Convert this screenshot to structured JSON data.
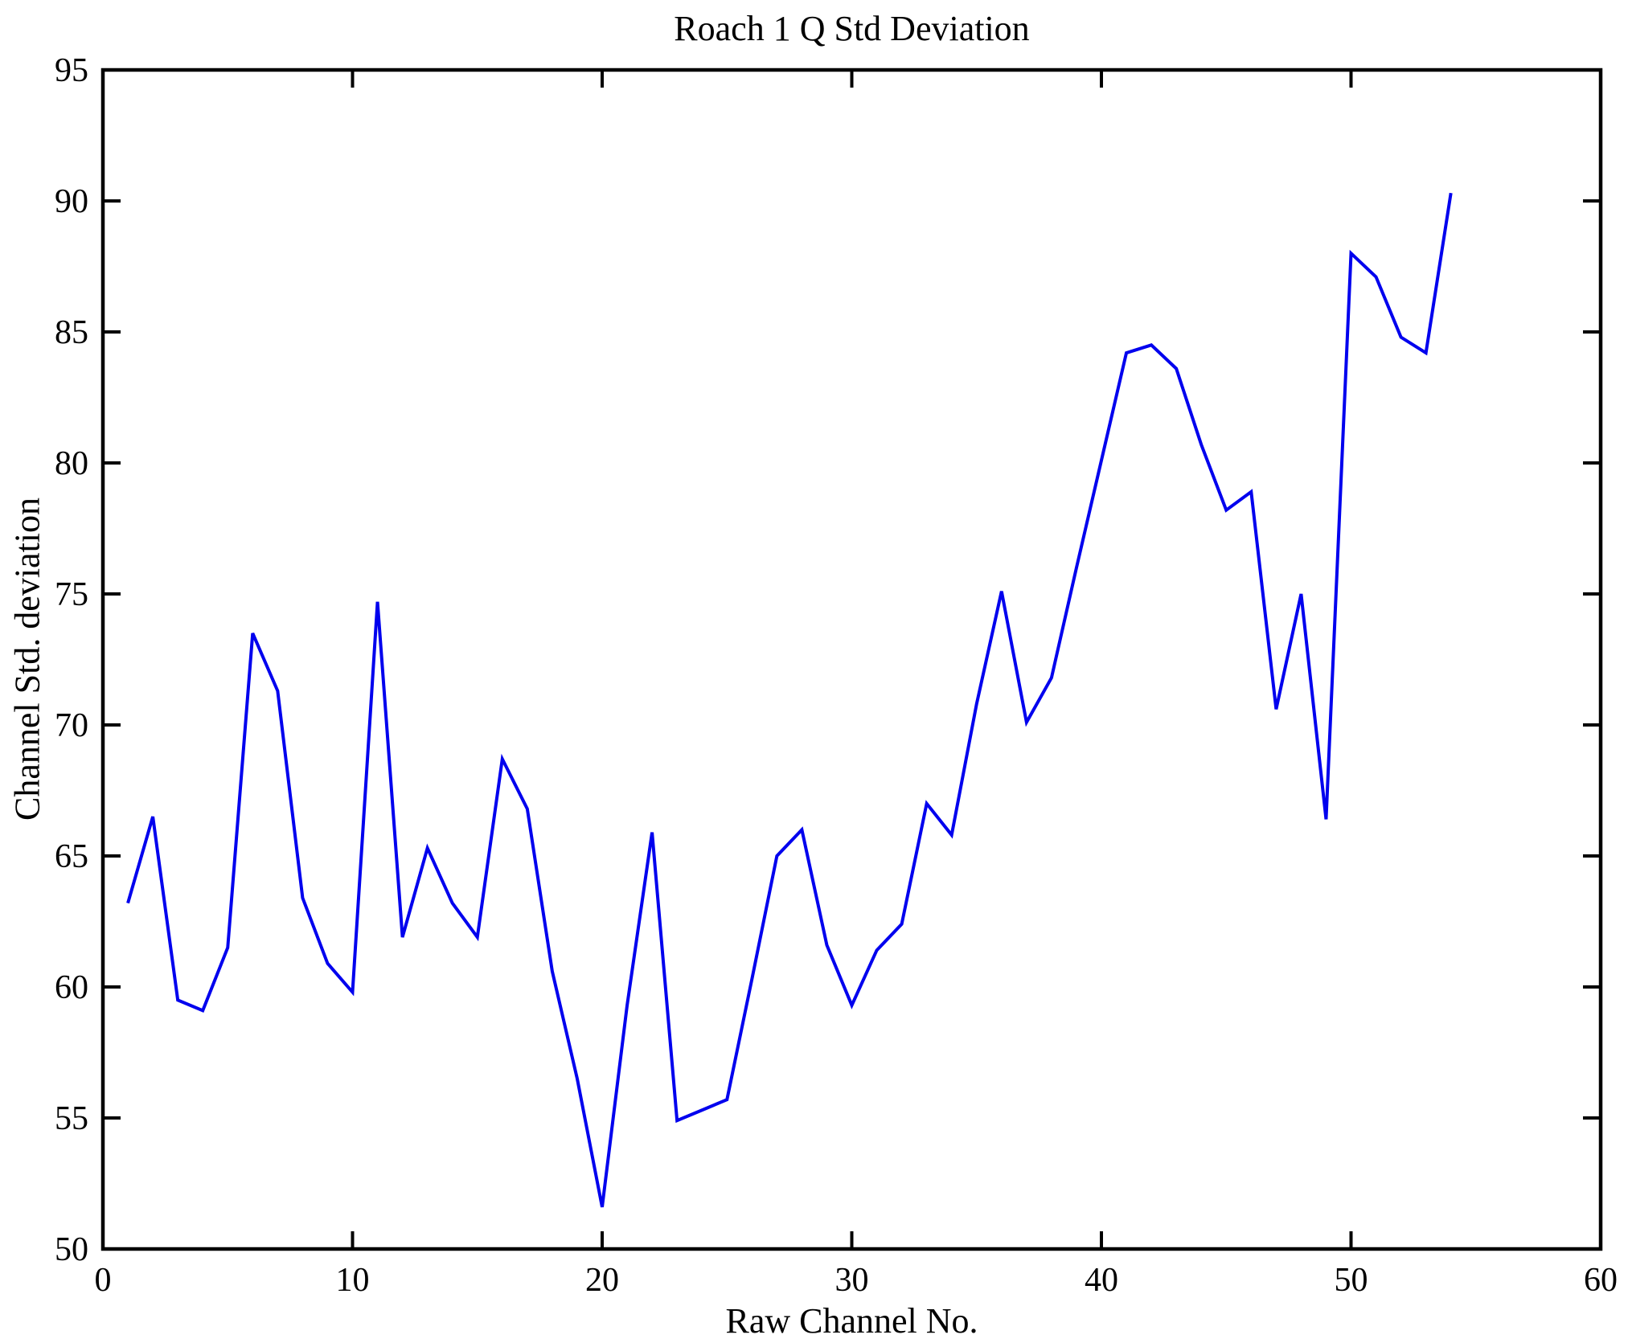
{
  "figure": {
    "background_color": "#ffffff",
    "axis_color": "#000000"
  },
  "chart_data": {
    "type": "line",
    "title": "Roach 1 Q Std Deviation",
    "xlabel": "Raw Channel No.",
    "ylabel": "Channel Std. deviation",
    "xlim": [
      0,
      60
    ],
    "ylim": [
      50,
      95
    ],
    "x_ticks": [
      0,
      10,
      20,
      30,
      40,
      50,
      60
    ],
    "y_ticks": [
      50,
      55,
      60,
      65,
      70,
      75,
      80,
      85,
      90,
      95
    ],
    "grid": false,
    "legend": "none",
    "line_color": "#0000ee",
    "x": [
      1,
      2,
      3,
      4,
      5,
      6,
      7,
      8,
      9,
      10,
      11,
      12,
      13,
      14,
      15,
      16,
      17,
      18,
      19,
      20,
      21,
      22,
      23,
      24,
      25,
      26,
      27,
      28,
      29,
      30,
      31,
      32,
      33,
      34,
      35,
      36,
      37,
      38,
      39,
      40,
      41,
      42,
      43,
      44,
      45,
      46,
      47,
      48,
      49,
      50,
      51,
      52,
      53,
      54
    ],
    "series": [
      {
        "name": "Channel Std. deviation",
        "values": [
          63.2,
          66.5,
          59.5,
          59.1,
          61.5,
          73.5,
          71.3,
          63.4,
          60.9,
          59.8,
          74.7,
          61.9,
          65.3,
          63.2,
          61.9,
          68.7,
          66.8,
          60.6,
          56.5,
          51.6,
          59.3,
          65.9,
          54.9,
          55.3,
          55.7,
          60.3,
          65.0,
          66.0,
          61.6,
          59.3,
          61.4,
          62.4,
          67.0,
          65.8,
          70.8,
          75.1,
          70.1,
          71.8,
          76.0,
          80.1,
          84.2,
          84.5,
          83.6,
          80.7,
          78.2,
          78.9,
          70.6,
          75.0,
          66.4,
          88.0,
          87.1,
          84.8,
          84.2,
          90.3
        ]
      }
    ]
  }
}
